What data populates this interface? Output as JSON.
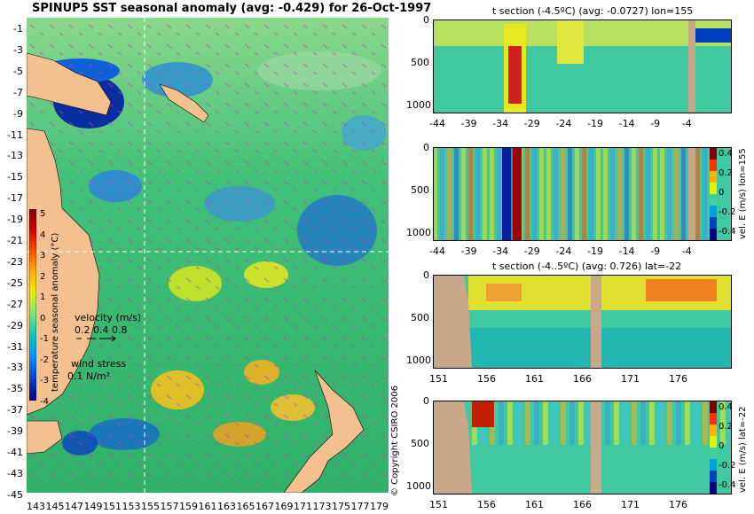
{
  "main_map": {
    "title": "SPINUP5 SST seasonal anomaly (avg: -0.429) for 26-Oct-1997",
    "y_ticks": [
      "-1",
      "-3",
      "-5",
      "-7",
      "-9",
      "-11",
      "-13",
      "-15",
      "-17",
      "-19",
      "-21",
      "-23",
      "-25",
      "-27",
      "-29",
      "-31",
      "-33",
      "-35",
      "-37",
      "-39",
      "-41",
      "-43",
      "-45"
    ],
    "x_ticks": [
      "143",
      "145",
      "147",
      "149",
      "151",
      "153",
      "155",
      "157",
      "159",
      "161",
      "163",
      "165",
      "167",
      "169",
      "171",
      "173",
      "175",
      "177",
      "179"
    ],
    "colorbar": {
      "ticks": [
        "5",
        "4",
        "3",
        "2",
        "1",
        "0",
        "-1",
        "-2",
        "-3",
        "-4"
      ],
      "label": "temperature seasonal anomaly (°C)",
      "colors": [
        "#800000",
        "#d20000",
        "#ff5000",
        "#ffb400",
        "#e6f00a",
        "#78e678",
        "#00c8c8",
        "#0096ff",
        "#0046d2",
        "#000080"
      ]
    },
    "velocity_legend": {
      "title": "velocity (m/s)",
      "scale": "0.2 0.4 0.8"
    },
    "wind_legend": {
      "title": "wind stress",
      "value": "0.1 N/m²"
    },
    "colors": {
      "land": "#f4c090",
      "ocean": "#38c070",
      "vectors": "#c040c0"
    }
  },
  "copyright": "© Copyright CSIRO 2006",
  "panels": [
    {
      "title": "t section (-4.5ºC) (avg: -0.0727) lon=155",
      "x_ticks": [
        "-44",
        "-39",
        "-34",
        "-29",
        "-24",
        "-19",
        "-14",
        "-9",
        "-4"
      ],
      "y_ticks": [
        "0",
        "500",
        "1000"
      ],
      "has_colorbar": false
    },
    {
      "title": "",
      "x_ticks": [
        "-44",
        "-39",
        "-34",
        "-29",
        "-24",
        "-19",
        "-14",
        "-9",
        "-4"
      ],
      "y_ticks": [
        "0",
        "500",
        "1000"
      ],
      "has_colorbar": true,
      "colorbar_ticks": [
        "0.4",
        "0.2",
        "0",
        "-0.2",
        "-0.4"
      ],
      "colorbar_label": "vel. E (m/s) lon=155"
    },
    {
      "title": "t section (-4..5ºC) (avg: 0.726) lat=-22",
      "x_ticks": [
        "151",
        "156",
        "161",
        "166",
        "171",
        "176"
      ],
      "y_ticks": [
        "0",
        "500",
        "1000"
      ],
      "has_colorbar": false
    },
    {
      "title": "",
      "x_ticks": [
        "151",
        "156",
        "161",
        "166",
        "171",
        "176"
      ],
      "y_ticks": [
        "0",
        "500",
        "1000"
      ],
      "has_colorbar": true,
      "colorbar_ticks": [
        "0.4",
        "0.2",
        "0",
        "-0.2",
        "-0.4"
      ],
      "colorbar_label": "vel. E (m/s) lat=-22"
    }
  ],
  "chart_data": [
    {
      "type": "heatmap",
      "title": "SPINUP5 SST seasonal anomaly (avg: -0.429) for 26-Oct-1997",
      "xlabel": "",
      "ylabel": "",
      "xlim": [
        142,
        180
      ],
      "ylim": [
        -45,
        0
      ],
      "colorbar_label": "temperature seasonal anomaly (°C)",
      "colorbar_range": [
        -4,
        5
      ]
    },
    {
      "type": "heatmap",
      "title": "t section (-4.5ºC) (avg: -0.0727) lon=155",
      "xlim": [
        -45,
        -1
      ],
      "ylim": [
        1050,
        0
      ]
    },
    {
      "type": "heatmap",
      "title": "",
      "xlim": [
        -45,
        -1
      ],
      "ylim": [
        1050,
        0
      ],
      "colorbar_label": "vel. E (m/s) lon=155",
      "colorbar_range": [
        -0.4,
        0.4
      ]
    },
    {
      "type": "heatmap",
      "title": "t section (-4..5ºC) (avg: 0.726) lat=-22",
      "xlim": [
        149.5,
        179.5
      ],
      "ylim": [
        1050,
        0
      ]
    },
    {
      "type": "heatmap",
      "title": "",
      "xlim": [
        149.5,
        179.5
      ],
      "ylim": [
        1050,
        0
      ],
      "colorbar_label": "vel. E (m/s) lat=-22",
      "colorbar_range": [
        -0.4,
        0.4
      ]
    }
  ]
}
